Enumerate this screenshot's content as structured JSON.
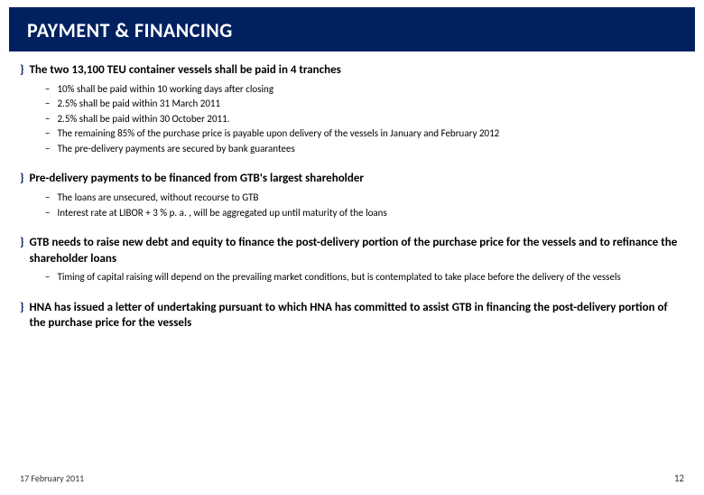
{
  "header": {
    "title": "PAYMENT & FINANCING",
    "background_color": "#002060",
    "text_color": "#ffffff"
  },
  "sections": [
    {
      "title": "The two 13,100 TEU container vessels shall be paid in 4 tranches",
      "items": [
        "10% shall be paid within 10 working days after closing",
        "2.5% shall be paid within 31 March 2011",
        "2.5% shall be paid within 30 October 2011.",
        "The remaining 85% of the purchase price is payable upon delivery of the vessels in January and February 2012",
        "The pre-delivery payments are secured by bank guarantees"
      ]
    },
    {
      "title": "Pre-delivery payments to be financed from GTB's largest shareholder",
      "items": [
        "The loans are unsecured, without recourse to GTB",
        "Interest rate at LIBOR + 3 % p. a. , will be aggregated up until maturity of the loans"
      ]
    },
    {
      "title": "GTB needs to raise new debt and equity to finance the post-delivery portion of the purchase price for the vessels and to refinance the shareholder loans",
      "items": [
        "Timing of capital raising will depend on the prevailing market conditions, but is contemplated to take place before the delivery of the vessels"
      ]
    },
    {
      "title": "HNA has issued a letter of undertaking pursuant to which HNA has committed to assist GTB in financing the post-delivery portion of the purchase price for the vessels",
      "items": []
    }
  ],
  "footer": {
    "date": "17 February 2011",
    "page": "12"
  },
  "bullets": {
    "main": "}",
    "sub": "−"
  }
}
